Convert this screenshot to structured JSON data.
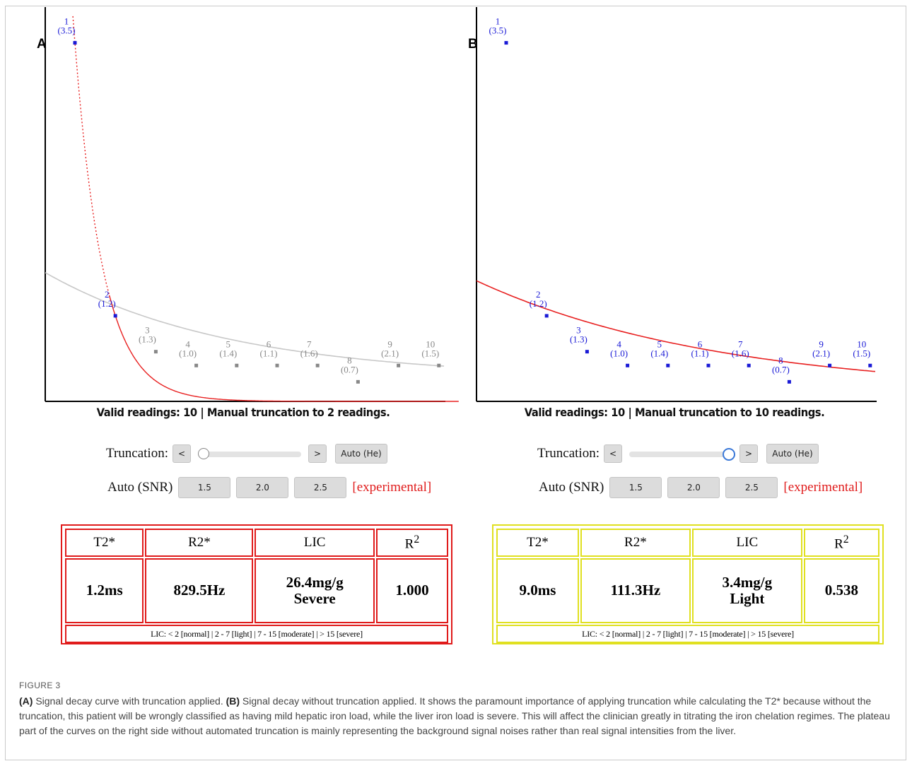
{
  "chart_data": [
    {
      "type": "scatter",
      "panel": "A",
      "points": [
        {
          "n": "1",
          "snr": "(3.5)",
          "x": 1,
          "y": 440,
          "color": "#1a1ad6"
        },
        {
          "n": "2",
          "snr": "(1.2)",
          "x": 2,
          "y": 105,
          "color": "#1a1ad6"
        },
        {
          "n": "3",
          "snr": "(1.3)",
          "x": 3,
          "y": 61,
          "color": "#888888"
        },
        {
          "n": "4",
          "snr": "(1.0)",
          "x": 4,
          "y": 44,
          "color": "#888888"
        },
        {
          "n": "5",
          "snr": "(1.4)",
          "x": 5,
          "y": 44,
          "color": "#888888"
        },
        {
          "n": "6",
          "snr": "(1.1)",
          "x": 6,
          "y": 44,
          "color": "#888888"
        },
        {
          "n": "7",
          "snr": "(1.6)",
          "x": 7,
          "y": 44,
          "color": "#888888"
        },
        {
          "n": "8",
          "snr": "(0.7)",
          "x": 8,
          "y": 24,
          "color": "#888888"
        },
        {
          "n": "9",
          "snr": "(2.1)",
          "x": 9,
          "y": 44,
          "color": "#888888"
        },
        {
          "n": "10",
          "snr": "(1.5)",
          "x": 10,
          "y": 44,
          "color": "#888888"
        }
      ],
      "fit_curve_color": "#e82020",
      "background_curve_color": "#c8c8c8",
      "ylim": [
        0,
        470
      ]
    },
    {
      "type": "scatter",
      "panel": "B",
      "points": [
        {
          "n": "1",
          "snr": "(3.5)",
          "x": 1,
          "y": 440,
          "color": "#1a1ad6"
        },
        {
          "n": "2",
          "snr": "(1.2)",
          "x": 2,
          "y": 105,
          "color": "#1a1ad6"
        },
        {
          "n": "3",
          "snr": "(1.3)",
          "x": 3,
          "y": 61,
          "color": "#1a1ad6"
        },
        {
          "n": "4",
          "snr": "(1.0)",
          "x": 4,
          "y": 44,
          "color": "#1a1ad6"
        },
        {
          "n": "5",
          "snr": "(1.4)",
          "x": 5,
          "y": 44,
          "color": "#1a1ad6"
        },
        {
          "n": "6",
          "snr": "(1.1)",
          "x": 6,
          "y": 44,
          "color": "#1a1ad6"
        },
        {
          "n": "7",
          "snr": "(1.6)",
          "x": 7,
          "y": 44,
          "color": "#1a1ad6"
        },
        {
          "n": "8",
          "snr": "(0.7)",
          "x": 8,
          "y": 24,
          "color": "#1a1ad6"
        },
        {
          "n": "9",
          "snr": "(2.1)",
          "x": 9,
          "y": 44,
          "color": "#1a1ad6"
        },
        {
          "n": "10",
          "snr": "(1.5)",
          "x": 10,
          "y": 44,
          "color": "#1a1ad6"
        }
      ],
      "fit_curve_color": "#e82020",
      "ylim": [
        0,
        470
      ]
    }
  ],
  "panels": [
    {
      "letter": "A",
      "summary": "Valid readings: 10 | Manual truncation to 2 readings.",
      "truncation_label": "Truncation:",
      "prev": "<",
      "next": ">",
      "auto_he": "Auto (He)",
      "slider_fraction": 0.0,
      "snr_label": "Auto (SNR)",
      "snr_buttons": [
        "1.5",
        "2.0",
        "2.5"
      ],
      "experimental": "[experimental]",
      "table_color": "#e01b1b",
      "headers": [
        "T2*",
        "R2*",
        "LIC",
        "R"
      ],
      "r2_sup": "2",
      "t2": "1.2ms",
      "r2": "829.5Hz",
      "lic": "26.4mg/g",
      "lic_class": "Severe",
      "rsq": "1.000",
      "note": "LIC: < 2 [normal] | 2 - 7 [light] | 7 - 15 [moderate] | > 15 [severe]"
    },
    {
      "letter": "B",
      "summary": "Valid readings: 10 | Manual truncation to 10 readings.",
      "truncation_label": "Truncation:",
      "prev": "<",
      "next": ">",
      "auto_he": "Auto (He)",
      "slider_fraction": 1.0,
      "snr_label": "Auto (SNR)",
      "snr_buttons": [
        "1.5",
        "2.0",
        "2.5"
      ],
      "experimental": "[experimental]",
      "table_color": "#e0e020",
      "headers": [
        "T2*",
        "R2*",
        "LIC",
        "R"
      ],
      "r2_sup": "2",
      "t2": "9.0ms",
      "r2": "111.3Hz",
      "lic": "3.4mg/g",
      "lic_class": "Light",
      "rsq": "0.538",
      "note": "LIC: < 2 [normal] | 2 - 7 [light] | 7 - 15 [moderate] | > 15 [severe]"
    }
  ],
  "caption": {
    "figure_label": "FIGURE 3",
    "a_label": "(A)",
    "a_text": " Signal decay curve with truncation applied. ",
    "b_label": "(B)",
    "b_text": " Signal decay without truncation applied. It shows the paramount importance of applying truncation while calculating the T2* because without the truncation, this patient will be wrongly classified as having mild hepatic iron load, while the liver iron load is severe. This will affect the clinician greatly in titrating the iron chelation regimes. The plateau part of the curves on the right side without automated truncation is mainly representing the background signal noises rather than real signal intensities from the liver."
  }
}
